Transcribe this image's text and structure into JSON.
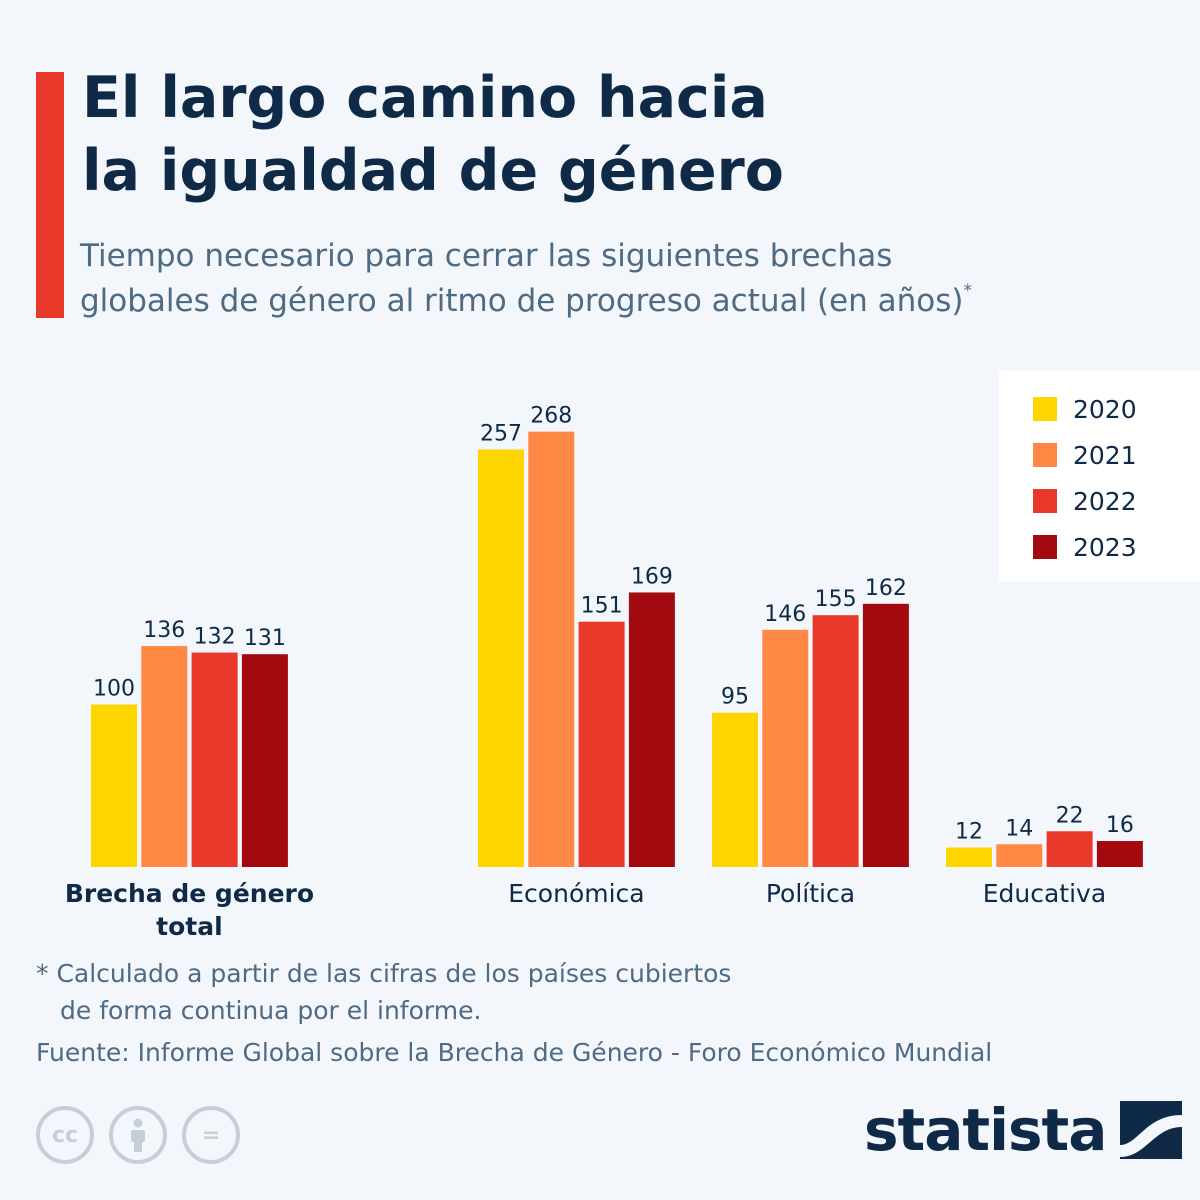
{
  "header": {
    "title_line1": "El largo camino hacia",
    "title_line2": "la igualdad de género",
    "subtitle_line1": "Tiempo necesario para cerrar las siguientes brechas",
    "subtitle_line2": "globales de género al ritmo de progreso actual (en años)",
    "subtitle_marker": "*"
  },
  "chart_data": {
    "type": "bar",
    "title": "El largo camino hacia la igualdad de género",
    "categories": [
      "Brecha de género total",
      "Económica",
      "Política",
      "Educativa"
    ],
    "category_lines": [
      [
        "Brecha de género",
        "total"
      ],
      [
        "Económica"
      ],
      [
        "Política"
      ],
      [
        "Educativa"
      ]
    ],
    "bold_category": 0,
    "series": [
      {
        "name": "2020",
        "color": "#ffd500",
        "values": [
          100,
          257,
          95,
          12
        ]
      },
      {
        "name": "2021",
        "color": "#ff8845",
        "values": [
          136,
          268,
          146,
          14
        ]
      },
      {
        "name": "2022",
        "color": "#e8392b",
        "values": [
          132,
          151,
          155,
          22
        ]
      },
      {
        "name": "2023",
        "color": "#a20a10",
        "values": [
          131,
          169,
          162,
          16
        ]
      }
    ],
    "ylim": [
      0,
      268
    ],
    "grid": false,
    "legend_position": "top-right"
  },
  "footer": {
    "note_line1": "* Calculado a partir de las cifras de los países cubiertos",
    "note_line2": "de forma continua por el informe.",
    "source": "Fuente: Informe Global sobre la Brecha de Género - Foro Económico Mundial",
    "brand": "statista",
    "license_icons": [
      "cc",
      "by",
      "nd"
    ],
    "license_labels": {
      "cc": "cc",
      "nd": "="
    }
  }
}
